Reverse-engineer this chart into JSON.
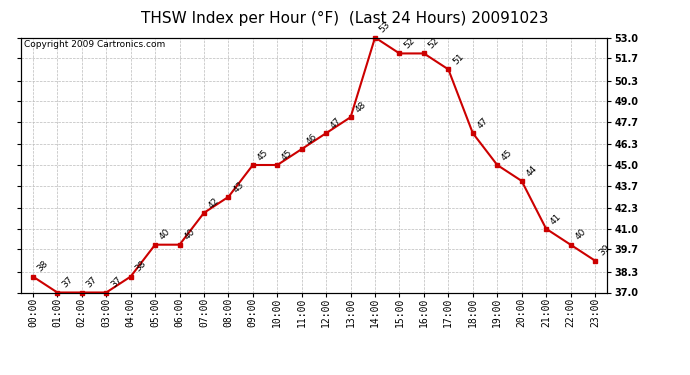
{
  "title": "THSW Index per Hour (°F)  (Last 24 Hours) 20091023",
  "copyright": "Copyright 2009 Cartronics.com",
  "hours": [
    "00:00",
    "01:00",
    "02:00",
    "03:00",
    "04:00",
    "05:00",
    "06:00",
    "07:00",
    "08:00",
    "09:00",
    "10:00",
    "11:00",
    "12:00",
    "13:00",
    "14:00",
    "15:00",
    "16:00",
    "17:00",
    "18:00",
    "19:00",
    "20:00",
    "21:00",
    "22:00",
    "23:00"
  ],
  "values": [
    38,
    37,
    37,
    37,
    38,
    40,
    40,
    42,
    43,
    45,
    45,
    46,
    47,
    48,
    53,
    52,
    52,
    51,
    47,
    45,
    44,
    41,
    40,
    39
  ],
  "line_color": "#cc0000",
  "marker_color": "#cc0000",
  "bg_color": "#ffffff",
  "grid_color": "#bbbbbb",
  "ylim_min": 37.0,
  "ylim_max": 53.0,
  "yticks": [
    37.0,
    38.3,
    39.7,
    41.0,
    42.3,
    43.7,
    45.0,
    46.3,
    47.7,
    49.0,
    50.3,
    51.7,
    53.0
  ],
  "title_fontsize": 11,
  "label_fontsize": 6.5,
  "tick_fontsize": 7,
  "copyright_fontsize": 6.5
}
